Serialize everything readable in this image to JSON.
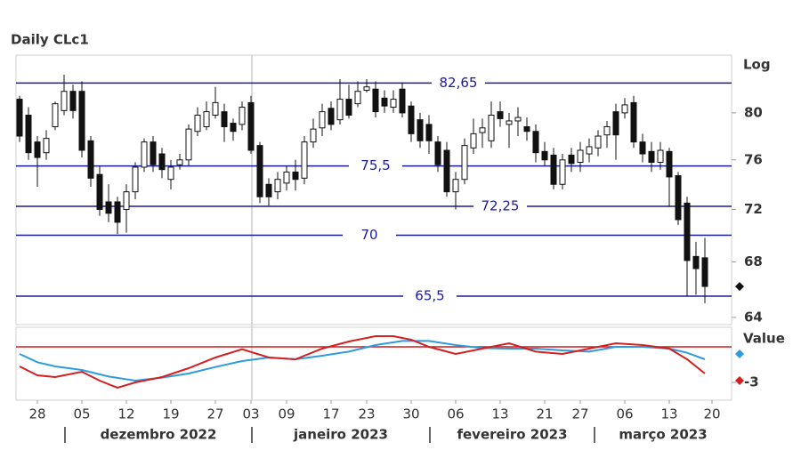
{
  "chart_data": {
    "type": "candlestick",
    "title": "Daily CLc1",
    "scale_label": "Log",
    "log_scale": true,
    "ylim": [
      63.5,
      85.2
    ],
    "yticks": [
      64,
      68,
      72,
      76,
      80
    ],
    "xlim": [
      -0.4,
      80
    ],
    "xticks": [
      {
        "value": 2,
        "label": "28"
      },
      {
        "value": 7,
        "label": "05"
      },
      {
        "value": 12,
        "label": "12"
      },
      {
        "value": 17,
        "label": "19"
      },
      {
        "value": 22,
        "label": "27"
      },
      {
        "value": 26,
        "label": "03"
      },
      {
        "value": 30,
        "label": "09"
      },
      {
        "value": 35,
        "label": "17"
      },
      {
        "value": 39,
        "label": "23"
      },
      {
        "value": 44,
        "label": "30"
      },
      {
        "value": 49,
        "label": "06"
      },
      {
        "value": 54,
        "label": "13"
      },
      {
        "value": 59,
        "label": "21"
      },
      {
        "value": 63,
        "label": "27"
      },
      {
        "value": 68,
        "label": "06"
      },
      {
        "value": 73,
        "label": "13"
      },
      {
        "value": 77.8,
        "label": "20"
      }
    ],
    "months": [
      {
        "label": "dezembro 2022",
        "from": 5.1,
        "to": 26.1
      },
      {
        "label": "janeiro 2023",
        "from": 26.1,
        "to": 46.1
      },
      {
        "label": "fevereiro 2023",
        "from": 46.1,
        "to": 64.6
      },
      {
        "label": "março 2023",
        "from": 64.6,
        "to": 80
      }
    ],
    "levels": [
      {
        "value": 82.65,
        "label": "82,65"
      },
      {
        "value": 75.5,
        "label": "75,5"
      },
      {
        "value": 72.25,
        "label": "72,25"
      },
      {
        "value": 70,
        "label": "70"
      },
      {
        "value": 65.5,
        "label": "65,5"
      }
    ],
    "level_color": "#1a1aa0",
    "candle_color": "#111111",
    "candles": [
      {
        "open": 81.2,
        "high": 81.5,
        "low": 77.5,
        "close": 78.0
      },
      {
        "open": 79.8,
        "high": 80.5,
        "low": 76.0,
        "close": 76.6
      },
      {
        "open": 77.5,
        "high": 78.0,
        "low": 73.8,
        "close": 76.2
      },
      {
        "open": 76.6,
        "high": 78.5,
        "low": 76.0,
        "close": 77.8
      },
      {
        "open": 78.8,
        "high": 81.0,
        "low": 78.5,
        "close": 80.8
      },
      {
        "open": 80.2,
        "high": 83.4,
        "low": 79.8,
        "close": 81.9
      },
      {
        "open": 81.9,
        "high": 82.5,
        "low": 79.5,
        "close": 80.2
      },
      {
        "open": 81.9,
        "high": 82.8,
        "low": 76.2,
        "close": 76.8
      },
      {
        "open": 77.6,
        "high": 78.0,
        "low": 73.8,
        "close": 74.5
      },
      {
        "open": 74.8,
        "high": 75.5,
        "low": 71.5,
        "close": 72.0
      },
      {
        "open": 72.6,
        "high": 74.0,
        "low": 71.0,
        "close": 71.7
      },
      {
        "open": 72.6,
        "high": 73.0,
        "low": 70.1,
        "close": 71.0
      },
      {
        "open": 72.0,
        "high": 74.0,
        "low": 70.2,
        "close": 73.4
      },
      {
        "open": 73.4,
        "high": 75.8,
        "low": 72.8,
        "close": 75.4
      },
      {
        "open": 75.4,
        "high": 77.8,
        "low": 75.0,
        "close": 77.5
      },
      {
        "open": 77.5,
        "high": 78.0,
        "low": 75.0,
        "close": 75.6
      },
      {
        "open": 76.5,
        "high": 77.0,
        "low": 74.5,
        "close": 75.2
      },
      {
        "open": 74.4,
        "high": 76.0,
        "low": 73.6,
        "close": 75.4
      },
      {
        "open": 75.6,
        "high": 76.5,
        "low": 75.2,
        "close": 76.0
      },
      {
        "open": 76.0,
        "high": 79.0,
        "low": 75.5,
        "close": 78.6
      },
      {
        "open": 78.4,
        "high": 80.5,
        "low": 78.0,
        "close": 79.8
      },
      {
        "open": 78.8,
        "high": 81.0,
        "low": 78.5,
        "close": 80.1
      },
      {
        "open": 79.8,
        "high": 82.3,
        "low": 79.5,
        "close": 80.9
      },
      {
        "open": 80.1,
        "high": 80.8,
        "low": 77.5,
        "close": 78.8
      },
      {
        "open": 79.1,
        "high": 79.5,
        "low": 77.6,
        "close": 78.4
      },
      {
        "open": 79.0,
        "high": 81.0,
        "low": 78.5,
        "close": 80.5
      },
      {
        "open": 80.9,
        "high": 81.5,
        "low": 76.5,
        "close": 76.8
      },
      {
        "open": 77.2,
        "high": 77.5,
        "low": 72.5,
        "close": 73.0
      },
      {
        "open": 74.0,
        "high": 74.5,
        "low": 72.3,
        "close": 73.0
      },
      {
        "open": 73.4,
        "high": 75.0,
        "low": 72.8,
        "close": 74.4
      },
      {
        "open": 74.1,
        "high": 75.5,
        "low": 73.5,
        "close": 75.0
      },
      {
        "open": 75.0,
        "high": 76.0,
        "low": 73.5,
        "close": 74.4
      },
      {
        "open": 74.5,
        "high": 78.0,
        "low": 74.0,
        "close": 77.5
      },
      {
        "open": 77.5,
        "high": 79.5,
        "low": 77.0,
        "close": 78.6
      },
      {
        "open": 78.7,
        "high": 80.8,
        "low": 78.0,
        "close": 80.1
      },
      {
        "open": 80.4,
        "high": 81.0,
        "low": 78.5,
        "close": 79.0
      },
      {
        "open": 79.4,
        "high": 83.0,
        "low": 79.0,
        "close": 81.2
      },
      {
        "open": 81.2,
        "high": 82.5,
        "low": 79.5,
        "close": 79.8
      },
      {
        "open": 80.8,
        "high": 82.8,
        "low": 80.5,
        "close": 81.9
      },
      {
        "open": 82.0,
        "high": 83.0,
        "low": 81.8,
        "close": 82.3
      },
      {
        "open": 82.1,
        "high": 82.8,
        "low": 79.6,
        "close": 80.1
      },
      {
        "open": 81.3,
        "high": 82.0,
        "low": 80.0,
        "close": 80.6
      },
      {
        "open": 80.5,
        "high": 82.0,
        "low": 80.0,
        "close": 81.2
      },
      {
        "open": 82.1,
        "high": 82.7,
        "low": 79.6,
        "close": 80.0
      },
      {
        "open": 80.6,
        "high": 81.0,
        "low": 77.5,
        "close": 78.2
      },
      {
        "open": 79.4,
        "high": 80.0,
        "low": 77.0,
        "close": 77.6
      },
      {
        "open": 79.0,
        "high": 79.8,
        "low": 76.5,
        "close": 77.6
      },
      {
        "open": 77.5,
        "high": 78.0,
        "low": 75.0,
        "close": 75.6
      },
      {
        "open": 76.8,
        "high": 77.5,
        "low": 73.0,
        "close": 73.4
      },
      {
        "open": 73.4,
        "high": 75.0,
        "low": 72.0,
        "close": 74.4
      },
      {
        "open": 74.4,
        "high": 77.8,
        "low": 74.0,
        "close": 77.2
      },
      {
        "open": 77.0,
        "high": 79.5,
        "low": 76.5,
        "close": 78.2
      },
      {
        "open": 78.3,
        "high": 79.5,
        "low": 77.0,
        "close": 78.7
      },
      {
        "open": 77.6,
        "high": 81.0,
        "low": 77.0,
        "close": 79.8
      },
      {
        "open": 80.1,
        "high": 81.0,
        "low": 78.8,
        "close": 79.5
      },
      {
        "open": 79.0,
        "high": 80.0,
        "low": 77.0,
        "close": 79.3
      },
      {
        "open": 79.3,
        "high": 80.5,
        "low": 78.0,
        "close": 79.6
      },
      {
        "open": 78.8,
        "high": 79.6,
        "low": 77.6,
        "close": 78.4
      },
      {
        "open": 78.4,
        "high": 79.0,
        "low": 75.8,
        "close": 76.6
      },
      {
        "open": 76.7,
        "high": 77.5,
        "low": 75.5,
        "close": 76.0
      },
      {
        "open": 76.4,
        "high": 77.0,
        "low": 73.6,
        "close": 74.0
      },
      {
        "open": 74.0,
        "high": 76.5,
        "low": 73.6,
        "close": 76.0
      },
      {
        "open": 76.4,
        "high": 77.0,
        "low": 75.0,
        "close": 75.7
      },
      {
        "open": 75.8,
        "high": 77.5,
        "low": 75.0,
        "close": 76.8
      },
      {
        "open": 76.5,
        "high": 77.8,
        "low": 75.8,
        "close": 77.1
      },
      {
        "open": 77.0,
        "high": 78.5,
        "low": 76.3,
        "close": 78.0
      },
      {
        "open": 78.1,
        "high": 79.3,
        "low": 77.0,
        "close": 78.8
      },
      {
        "open": 80.1,
        "high": 80.8,
        "low": 76.0,
        "close": 78.1
      },
      {
        "open": 80.0,
        "high": 81.3,
        "low": 79.5,
        "close": 80.7
      },
      {
        "open": 80.9,
        "high": 81.5,
        "low": 77.0,
        "close": 77.5
      },
      {
        "open": 77.5,
        "high": 78.2,
        "low": 75.8,
        "close": 76.5
      },
      {
        "open": 76.7,
        "high": 77.5,
        "low": 75.0,
        "close": 75.8
      },
      {
        "open": 75.8,
        "high": 77.5,
        "low": 75.2,
        "close": 76.8
      },
      {
        "open": 76.7,
        "high": 77.0,
        "low": 72.2,
        "close": 74.6
      },
      {
        "open": 74.7,
        "high": 75.0,
        "low": 70.8,
        "close": 71.2
      },
      {
        "open": 72.5,
        "high": 73.0,
        "low": 65.5,
        "close": 68.1
      },
      {
        "open": 68.4,
        "high": 69.5,
        "low": 65.6,
        "close": 67.5
      },
      {
        "open": 68.3,
        "high": 69.8,
        "low": 65.0,
        "close": 66.2
      }
    ],
    "indicator": {
      "label": "Value",
      "ylim": [
        -4.5,
        1.65
      ],
      "yticks": [
        -3
      ],
      "reference_line": 0,
      "reference_color": "#c81e1e",
      "series": [
        {
          "color": "#2e9be0",
          "x": [
            0,
            2,
            4,
            7,
            10,
            13,
            16,
            19,
            22,
            25,
            28,
            31,
            34,
            37,
            40,
            43,
            46,
            49,
            52,
            55,
            58,
            61,
            64,
            67,
            70,
            73,
            75,
            77
          ],
          "values": [
            -0.6,
            -1.3,
            -1.65,
            -1.95,
            -2.5,
            -2.85,
            -2.6,
            -2.25,
            -1.7,
            -1.2,
            -0.9,
            -1.05,
            -0.75,
            -0.4,
            0.15,
            0.5,
            0.5,
            0.15,
            -0.1,
            -0.15,
            -0.15,
            -0.3,
            -0.4,
            0,
            0,
            -0.15,
            -0.5,
            -1.05
          ]
        },
        {
          "color": "#d42020",
          "x": [
            0,
            2,
            4,
            7,
            9,
            11,
            13,
            16,
            19,
            22,
            25,
            28,
            31,
            34,
            37,
            40,
            42,
            44,
            46,
            49,
            52,
            55,
            58,
            61,
            64,
            67,
            70,
            73,
            75,
            77
          ],
          "values": [
            -1.65,
            -2.4,
            -2.55,
            -2.1,
            -2.85,
            -3.45,
            -3.0,
            -2.55,
            -1.8,
            -0.9,
            -0.2,
            -0.9,
            -1.05,
            -0.15,
            0.45,
            0.9,
            0.9,
            0.6,
            0,
            -0.6,
            -0.15,
            0.3,
            -0.4,
            -0.6,
            -0.15,
            0.3,
            0.15,
            -0.15,
            -1.05,
            -2.25
          ]
        }
      ]
    }
  }
}
